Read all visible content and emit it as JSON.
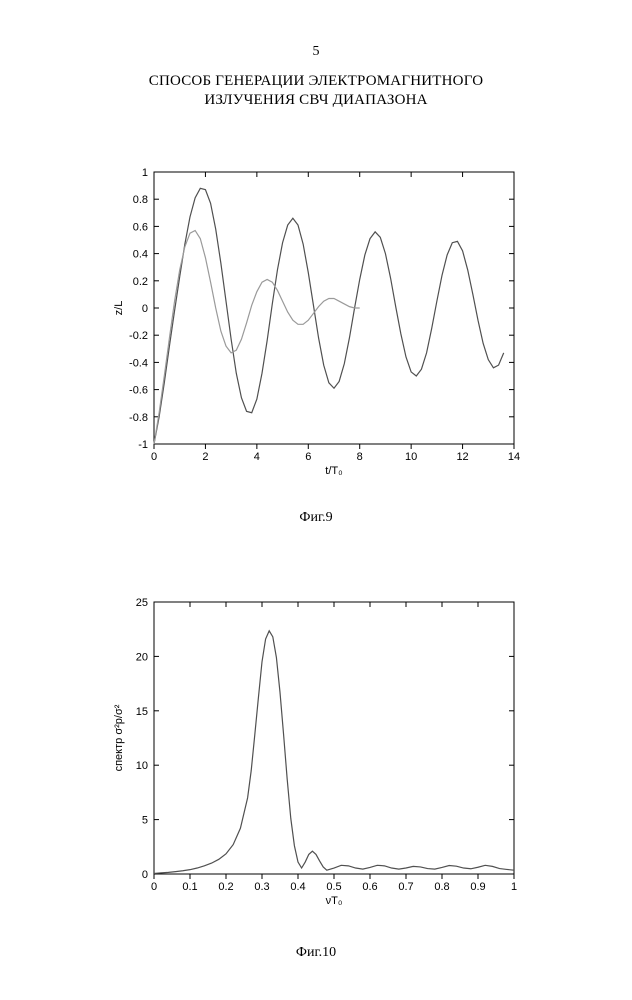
{
  "page_number": "5",
  "title_line1": "СПОСОБ ГЕНЕРАЦИИ ЭЛЕКТРОМАГНИТНОГО",
  "title_line2": "ИЗЛУЧЕНИЯ СВЧ ДИАПАЗОНА",
  "figure1": {
    "type": "line",
    "caption": "Фиг.9",
    "xlabel": "t/T₀",
    "ylabel": "z/L",
    "xlim": [
      0,
      14
    ],
    "ylim": [
      -1,
      1
    ],
    "xticks": [
      0,
      2,
      4,
      6,
      8,
      10,
      12,
      14
    ],
    "yticks": [
      -1,
      -0.8,
      -0.6,
      -0.4,
      -0.2,
      0,
      0.2,
      0.4,
      0.6,
      0.8,
      1
    ],
    "xtick_labels": [
      "0",
      "2",
      "4",
      "6",
      "8",
      "10",
      "12",
      "14"
    ],
    "ytick_labels": [
      "-1",
      "-0.8",
      "-0.6",
      "-0.4",
      "-0.2",
      "0",
      "0.2",
      "0.4",
      "0.6",
      "0.8",
      "1"
    ],
    "background_color": "#ffffff",
    "border_color": "#000000",
    "series": [
      {
        "name": "solid-curve",
        "color": "#505050",
        "dash": "",
        "x": [
          0,
          0.2,
          0.4,
          0.6,
          0.8,
          1.0,
          1.2,
          1.4,
          1.6,
          1.8,
          2.0,
          2.2,
          2.4,
          2.6,
          2.8,
          3.0,
          3.2,
          3.4,
          3.6,
          3.8,
          4.0,
          4.2,
          4.4,
          4.6,
          4.8,
          5.0,
          5.2,
          5.4,
          5.6,
          5.8,
          6.0,
          6.2,
          6.4,
          6.6,
          6.8,
          7.0,
          7.2,
          7.4,
          7.6,
          7.8,
          8.0,
          8.2,
          8.4,
          8.6,
          8.8,
          9.0,
          9.2,
          9.4,
          9.6,
          9.8,
          10.0,
          10.2,
          10.4,
          10.6,
          10.8,
          11.0,
          11.2,
          11.4,
          11.6,
          11.8,
          12.0,
          12.2,
          12.4,
          12.6,
          12.8,
          13.0,
          13.2,
          13.4,
          13.6
        ],
        "y": [
          -1.0,
          -0.8,
          -0.55,
          -0.28,
          -0.02,
          0.23,
          0.47,
          0.67,
          0.81,
          0.88,
          0.87,
          0.77,
          0.58,
          0.33,
          0.05,
          -0.23,
          -0.48,
          -0.66,
          -0.76,
          -0.77,
          -0.67,
          -0.48,
          -0.24,
          0.03,
          0.28,
          0.48,
          0.61,
          0.66,
          0.61,
          0.47,
          0.26,
          0.02,
          -0.22,
          -0.42,
          -0.55,
          -0.59,
          -0.54,
          -0.41,
          -0.22,
          0.0,
          0.21,
          0.39,
          0.51,
          0.56,
          0.52,
          0.4,
          0.22,
          0.01,
          -0.19,
          -0.36,
          -0.47,
          -0.5,
          -0.45,
          -0.33,
          -0.15,
          0.05,
          0.24,
          0.39,
          0.48,
          0.49,
          0.42,
          0.28,
          0.1,
          -0.09,
          -0.26,
          -0.38,
          -0.44,
          -0.42,
          -0.33
        ]
      },
      {
        "name": "damped-curve",
        "color": "#9a9a9a",
        "dash": "",
        "x": [
          0,
          0.2,
          0.4,
          0.6,
          0.8,
          1.0,
          1.2,
          1.4,
          1.6,
          1.8,
          2.0,
          2.2,
          2.4,
          2.6,
          2.8,
          3.0,
          3.2,
          3.4,
          3.6,
          3.8,
          4.0,
          4.2,
          4.4,
          4.6,
          4.8,
          5.0,
          5.2,
          5.4,
          5.6,
          5.8,
          6.0,
          6.2,
          6.4,
          6.6,
          6.8,
          7.0,
          7.2,
          7.4,
          7.6,
          7.8,
          8.0
        ],
        "y": [
          -1.0,
          -0.77,
          -0.5,
          -0.22,
          0.05,
          0.28,
          0.45,
          0.55,
          0.57,
          0.51,
          0.37,
          0.19,
          0.0,
          -0.17,
          -0.28,
          -0.33,
          -0.31,
          -0.23,
          -0.11,
          0.02,
          0.12,
          0.19,
          0.21,
          0.19,
          0.13,
          0.05,
          -0.03,
          -0.09,
          -0.12,
          -0.12,
          -0.09,
          -0.04,
          0.01,
          0.05,
          0.07,
          0.07,
          0.05,
          0.03,
          0.01,
          0.0,
          0.0
        ]
      }
    ]
  },
  "figure2": {
    "type": "line",
    "caption": "Фиг.10",
    "xlabel": "νT₀",
    "ylabel": "спектр σ²p/σ²",
    "xlim": [
      0,
      1
    ],
    "ylim": [
      0,
      25
    ],
    "xticks": [
      0,
      0.1,
      0.2,
      0.3,
      0.4,
      0.5,
      0.6,
      0.7,
      0.8,
      0.9,
      1.0
    ],
    "yticks": [
      0,
      5,
      10,
      15,
      20,
      25
    ],
    "xtick_labels": [
      "0",
      "0.1",
      "0.2",
      "0.3",
      "0.4",
      "0.5",
      "0.6",
      "0.7",
      "0.8",
      "0.9",
      "1"
    ],
    "ytick_labels": [
      "0",
      "5",
      "10",
      "15",
      "20",
      "25"
    ],
    "background_color": "#ffffff",
    "border_color": "#000000",
    "series": [
      {
        "name": "spectrum",
        "color": "#505050",
        "dash": "",
        "x": [
          0.0,
          0.02,
          0.04,
          0.06,
          0.08,
          0.1,
          0.12,
          0.14,
          0.16,
          0.18,
          0.2,
          0.22,
          0.24,
          0.26,
          0.27,
          0.28,
          0.29,
          0.3,
          0.31,
          0.32,
          0.33,
          0.34,
          0.35,
          0.36,
          0.37,
          0.38,
          0.39,
          0.4,
          0.41,
          0.42,
          0.43,
          0.44,
          0.45,
          0.46,
          0.47,
          0.48,
          0.5,
          0.52,
          0.54,
          0.56,
          0.58,
          0.6,
          0.62,
          0.64,
          0.66,
          0.68,
          0.7,
          0.72,
          0.74,
          0.76,
          0.78,
          0.8,
          0.82,
          0.84,
          0.86,
          0.88,
          0.9,
          0.92,
          0.94,
          0.96,
          0.98,
          1.0
        ],
        "y": [
          0.05,
          0.1,
          0.15,
          0.22,
          0.3,
          0.4,
          0.55,
          0.75,
          1.0,
          1.35,
          1.85,
          2.7,
          4.2,
          7.0,
          9.5,
          12.8,
          16.2,
          19.5,
          21.6,
          22.35,
          21.8,
          19.9,
          16.7,
          12.8,
          8.7,
          5.1,
          2.6,
          1.1,
          0.55,
          1.1,
          1.8,
          2.1,
          1.8,
          1.2,
          0.65,
          0.35,
          0.55,
          0.8,
          0.75,
          0.55,
          0.45,
          0.6,
          0.8,
          0.75,
          0.55,
          0.45,
          0.55,
          0.7,
          0.65,
          0.5,
          0.45,
          0.6,
          0.78,
          0.72,
          0.55,
          0.48,
          0.62,
          0.8,
          0.7,
          0.5,
          0.42,
          0.35
        ]
      }
    ]
  }
}
